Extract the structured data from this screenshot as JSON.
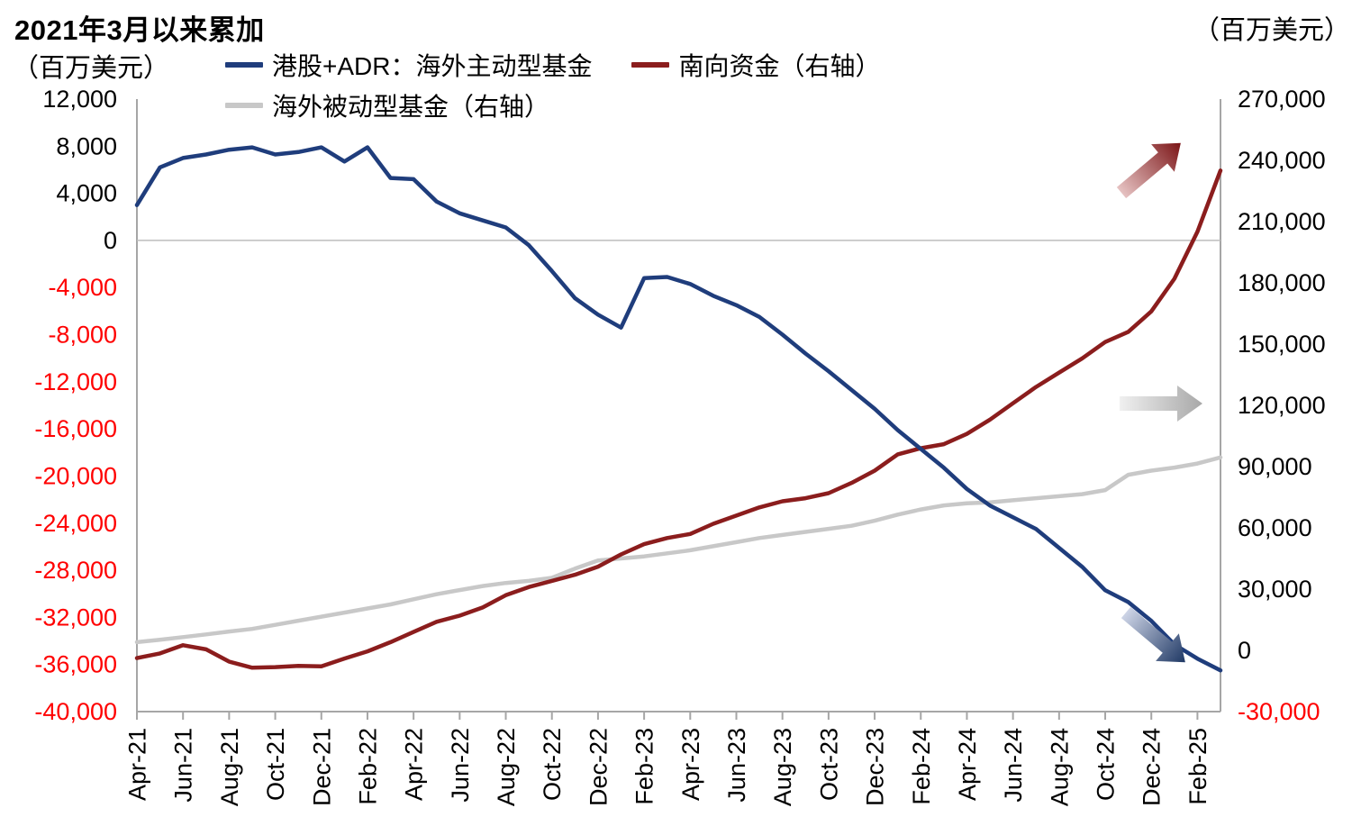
{
  "title": "2021年3月以来累加",
  "left_axis_unit": "（百万美元）",
  "right_axis_unit": "（百万美元）",
  "legend": [
    {
      "label": "港股+ADR：海外主动型基金",
      "color": "#1f3d7c",
      "axis": "left"
    },
    {
      "label": "南向资金（右轴）",
      "color": "#8b1d1d",
      "axis": "right"
    },
    {
      "label": "海外被动型基金（右轴）",
      "color": "#c8c8c8",
      "axis": "right"
    }
  ],
  "annotations": [
    {
      "name": "southbound-up-arrow",
      "direction": "up-right",
      "color": "#7b1416"
    },
    {
      "name": "passive-right-arrow",
      "direction": "right",
      "color": "#ababab"
    },
    {
      "name": "active-down-arrow",
      "direction": "down-right",
      "color": "#1f3864"
    }
  ],
  "chart_data": {
    "type": "line",
    "title": "2021年3月以来累加",
    "left_axis": {
      "min": -40000,
      "max": 12000,
      "step": 4000,
      "unit": "百万美元",
      "negative_color": "#ff0000"
    },
    "right_axis": {
      "min": -30000,
      "max": 270000,
      "step": 30000,
      "unit": "百万美元",
      "negative_color": "#ff0000"
    },
    "grid": "zero-line-only",
    "legend_position": "top",
    "x": [
      "Apr-21",
      "May-21",
      "Jun-21",
      "Jul-21",
      "Aug-21",
      "Sep-21",
      "Oct-21",
      "Nov-21",
      "Dec-21",
      "Jan-22",
      "Feb-22",
      "Mar-22",
      "Apr-22",
      "May-22",
      "Jun-22",
      "Jul-22",
      "Aug-22",
      "Sep-22",
      "Oct-22",
      "Nov-22",
      "Dec-22",
      "Jan-23",
      "Feb-23",
      "Mar-23",
      "Apr-23",
      "May-23",
      "Jun-23",
      "Jul-23",
      "Aug-23",
      "Sep-23",
      "Oct-23",
      "Nov-23",
      "Dec-23",
      "Jan-24",
      "Feb-24",
      "Mar-24",
      "Apr-24",
      "May-24",
      "Jun-24",
      "Jul-24",
      "Aug-24",
      "Sep-24",
      "Oct-24",
      "Nov-24",
      "Dec-24",
      "Jan-25",
      "Feb-25",
      "Mar-25"
    ],
    "x_label_every": 2,
    "series": [
      {
        "name": "港股+ADR：海外主动型基金",
        "axis": "left",
        "color": "#1f3d7c",
        "values": [
          3000,
          6200,
          7000,
          7300,
          7700,
          7900,
          7300,
          7500,
          7900,
          6700,
          7900,
          5300,
          5200,
          3300,
          2300,
          1700,
          1100,
          -400,
          -2600,
          -4900,
          -6300,
          -7400,
          -3200,
          -3100,
          -3700,
          -4700,
          -5500,
          -6500,
          -8000,
          -9600,
          -11100,
          -12700,
          -14300,
          -16100,
          -17700,
          -19300,
          -21100,
          -22500,
          -23500,
          -24500,
          -26100,
          -27700,
          -29700,
          -30700,
          -32300,
          -34300,
          -35500,
          -36500
        ]
      },
      {
        "name": "南向资金（右轴）",
        "axis": "right",
        "color": "#8b1d1d",
        "values": [
          -3800,
          -1500,
          2500,
          500,
          -5500,
          -8500,
          -8200,
          -7600,
          -7800,
          -4000,
          -500,
          4000,
          9000,
          14000,
          17000,
          21000,
          27000,
          31000,
          34000,
          37000,
          41000,
          47000,
          52000,
          55000,
          57000,
          62000,
          66000,
          70000,
          73000,
          74500,
          77000,
          82000,
          88000,
          96000,
          99000,
          101000,
          106000,
          113000,
          121000,
          129000,
          136000,
          143000,
          151000,
          156000,
          166000,
          182000,
          205000,
          235000
        ]
      },
      {
        "name": "海外被动型基金（右轴）",
        "axis": "right",
        "color": "#c8c8c8",
        "values": [
          4000,
          5200,
          6500,
          7800,
          9200,
          10500,
          12500,
          14500,
          16500,
          18500,
          20500,
          22500,
          25000,
          27500,
          29500,
          31500,
          33000,
          34000,
          35500,
          40000,
          44000,
          45000,
          46000,
          47500,
          49000,
          51000,
          53000,
          55000,
          56500,
          58000,
          59500,
          61000,
          63500,
          66500,
          69000,
          71000,
          72000,
          72500,
          73500,
          74500,
          75500,
          76500,
          78500,
          86000,
          88000,
          89500,
          91500,
          94500
        ]
      }
    ]
  }
}
